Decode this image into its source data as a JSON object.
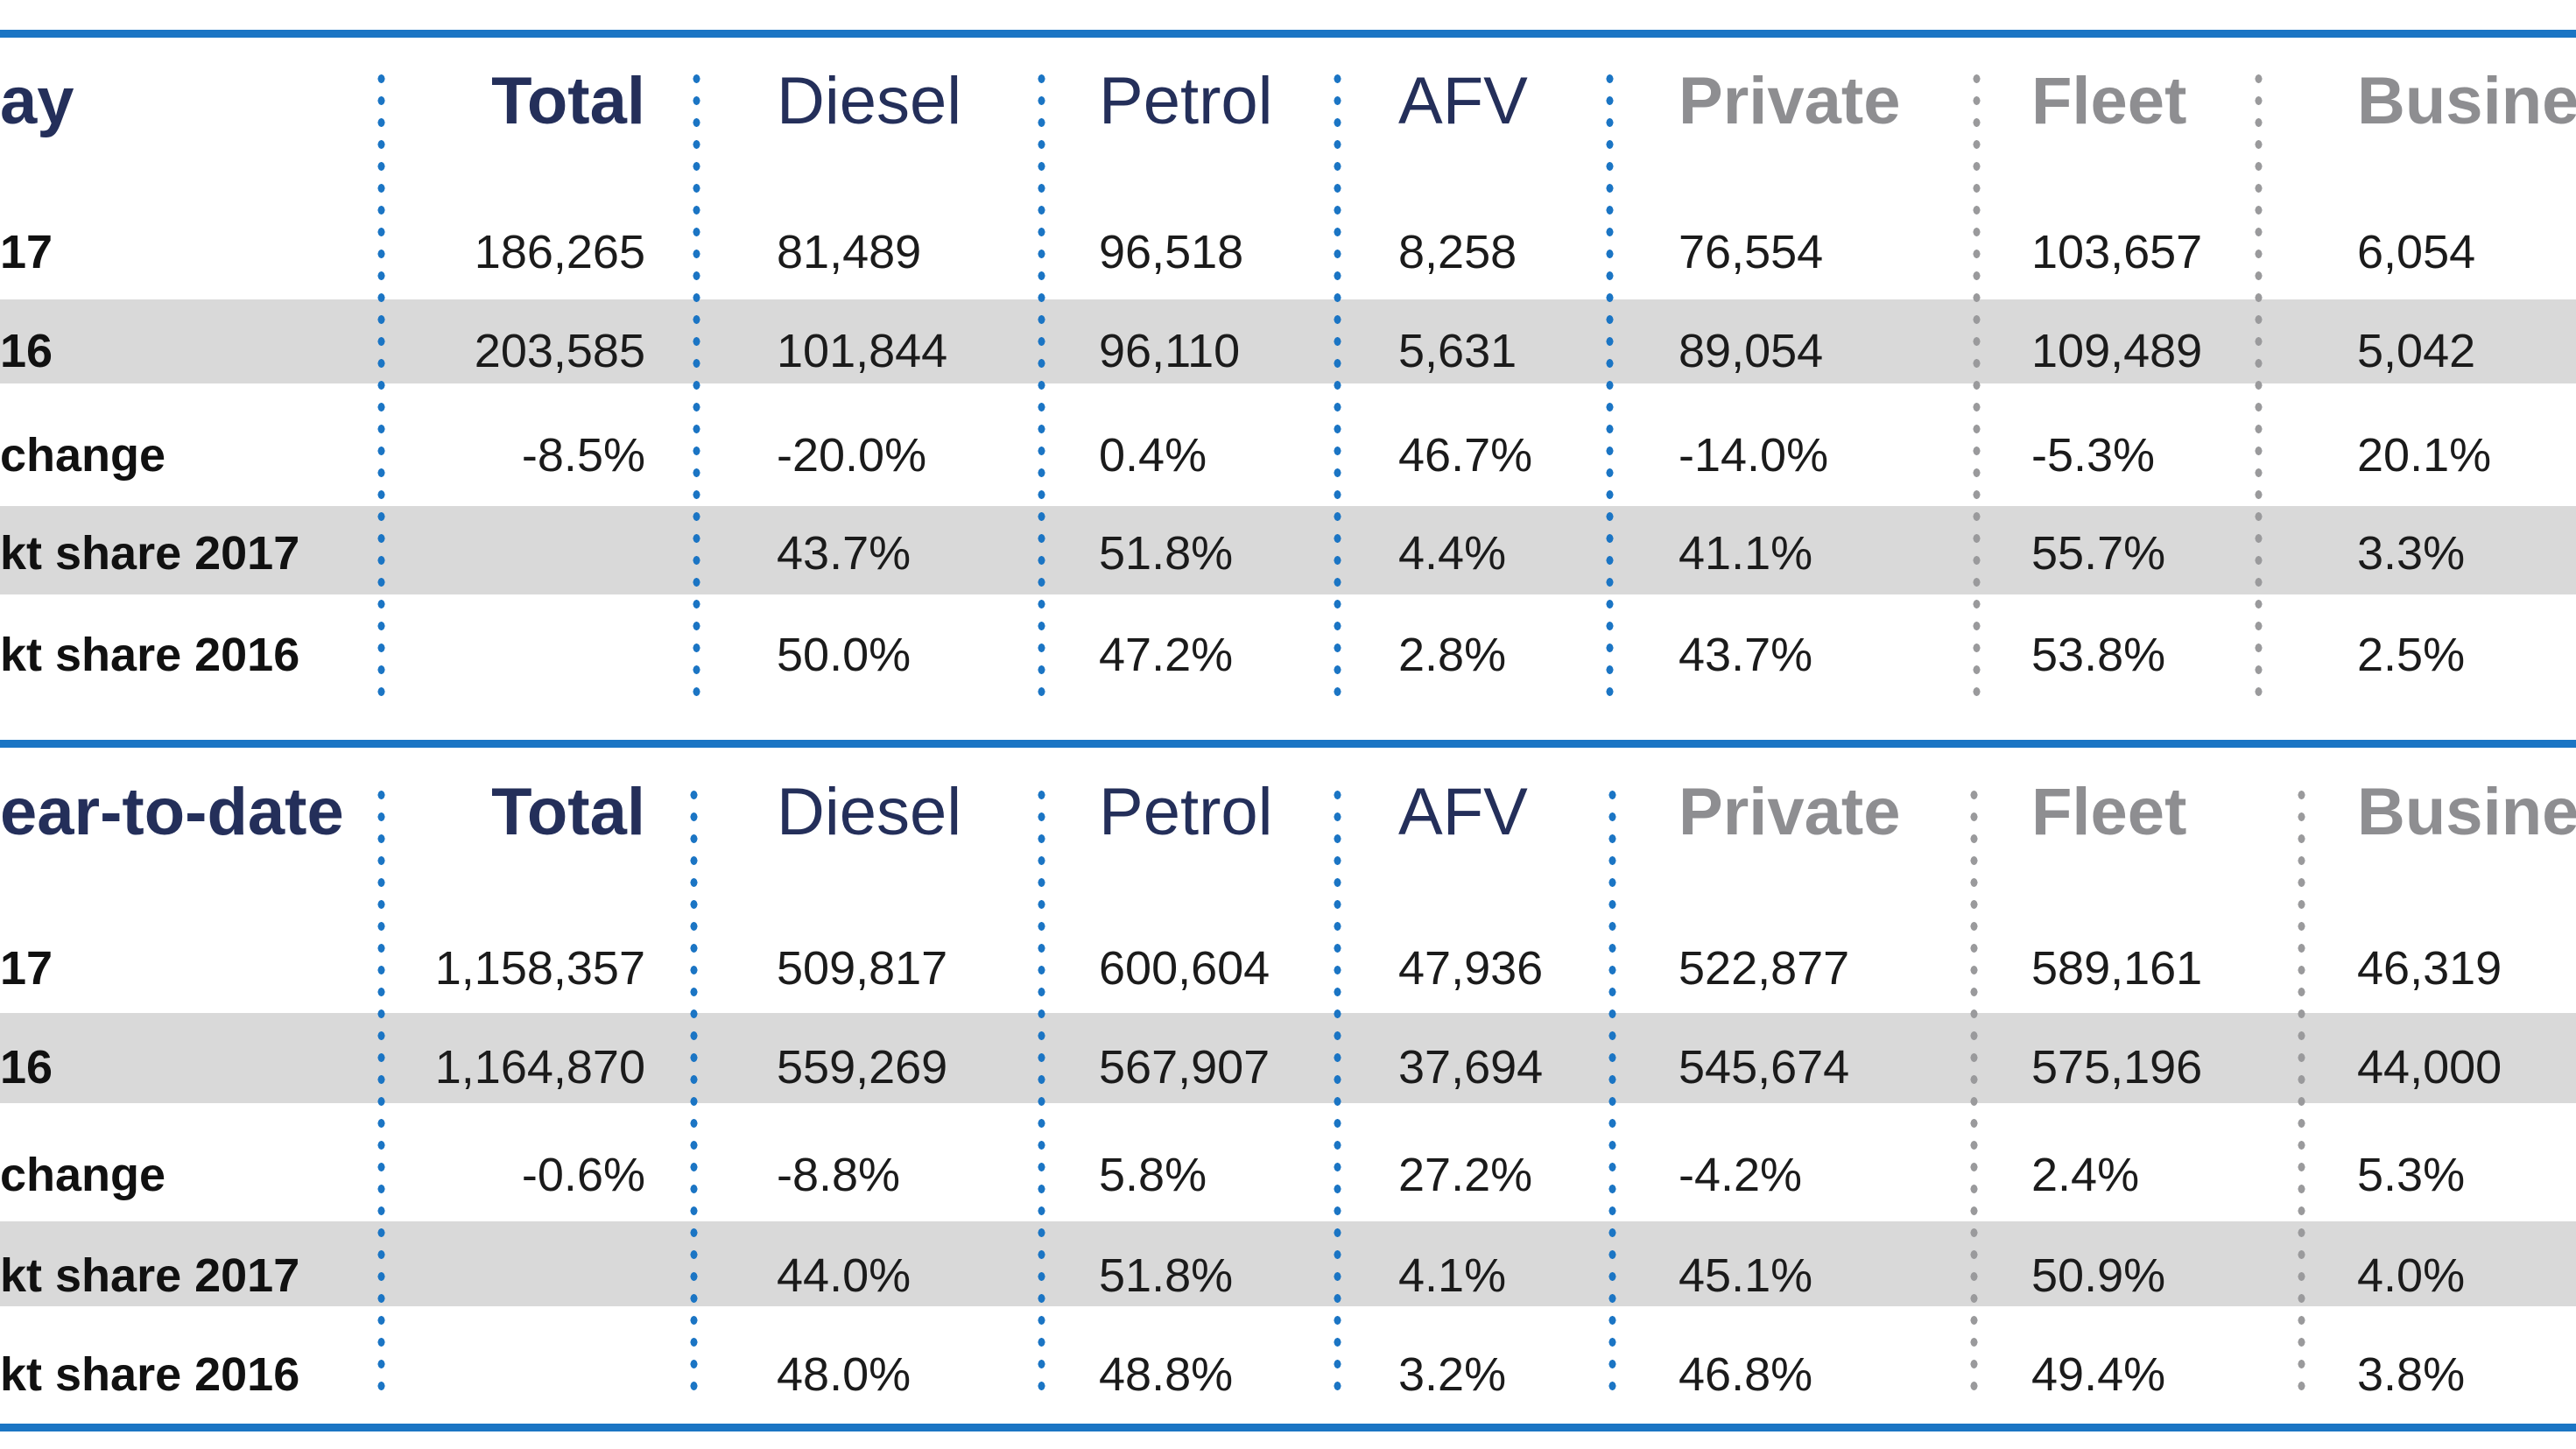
{
  "colors": {
    "accent_blue": "#1b75c4",
    "navy_text": "#242f5a",
    "gray_header_text": "#8e8e91",
    "gray_dotted_line": "#9a9a9c",
    "row_stripe": "#d9d9d9",
    "data_text": "#1b1b1b",
    "background": "#ffffff"
  },
  "chart_data": [
    {
      "type": "table",
      "title": "ay",
      "columns": [
        "Total",
        "Diesel",
        "Petrol",
        "AFV",
        "Private",
        "Fleet",
        "Business"
      ],
      "rows": [
        {
          "label": "17",
          "cells": [
            "186,265",
            "81,489",
            "96,518",
            "8,258",
            "76,554",
            "103,657",
            "6,054"
          ]
        },
        {
          "label": "16",
          "cells": [
            "203,585",
            "101,844",
            "96,110",
            "5,631",
            "89,054",
            "109,489",
            "5,042"
          ]
        },
        {
          "label": "change",
          "cells": [
            "-8.5%",
            "-20.0%",
            "0.4%",
            "46.7%",
            "-14.0%",
            "-5.3%",
            "20.1%"
          ]
        },
        {
          "label": "kt share 2017",
          "cells": [
            "",
            "43.7%",
            "51.8%",
            "4.4%",
            "41.1%",
            "55.7%",
            "3.3%"
          ]
        },
        {
          "label": "kt share 2016",
          "cells": [
            "",
            "50.0%",
            "47.2%",
            "2.8%",
            "43.7%",
            "53.8%",
            "2.5%"
          ]
        }
      ]
    },
    {
      "type": "table",
      "title": "ear-to-date",
      "columns": [
        "Total",
        "Diesel",
        "Petrol",
        "AFV",
        "Private",
        "Fleet",
        "Business"
      ],
      "rows": [
        {
          "label": "17",
          "cells": [
            "1,158,357",
            "509,817",
            "600,604",
            "47,936",
            "522,877",
            "589,161",
            "46,319"
          ]
        },
        {
          "label": "16",
          "cells": [
            "1,164,870",
            "559,269",
            "567,907",
            "37,694",
            "545,674",
            "575,196",
            "44,000"
          ]
        },
        {
          "label": "change",
          "cells": [
            "-0.6%",
            "-8.8%",
            "5.8%",
            "27.2%",
            "-4.2%",
            "2.4%",
            "5.3%"
          ]
        },
        {
          "label": "kt share 2017",
          "cells": [
            "",
            "44.0%",
            "51.8%",
            "4.1%",
            "45.1%",
            "50.9%",
            "4.0%"
          ]
        },
        {
          "label": "kt share 2016",
          "cells": [
            "",
            "48.0%",
            "48.8%",
            "3.2%",
            "46.8%",
            "49.4%",
            "3.8%"
          ]
        }
      ]
    }
  ]
}
